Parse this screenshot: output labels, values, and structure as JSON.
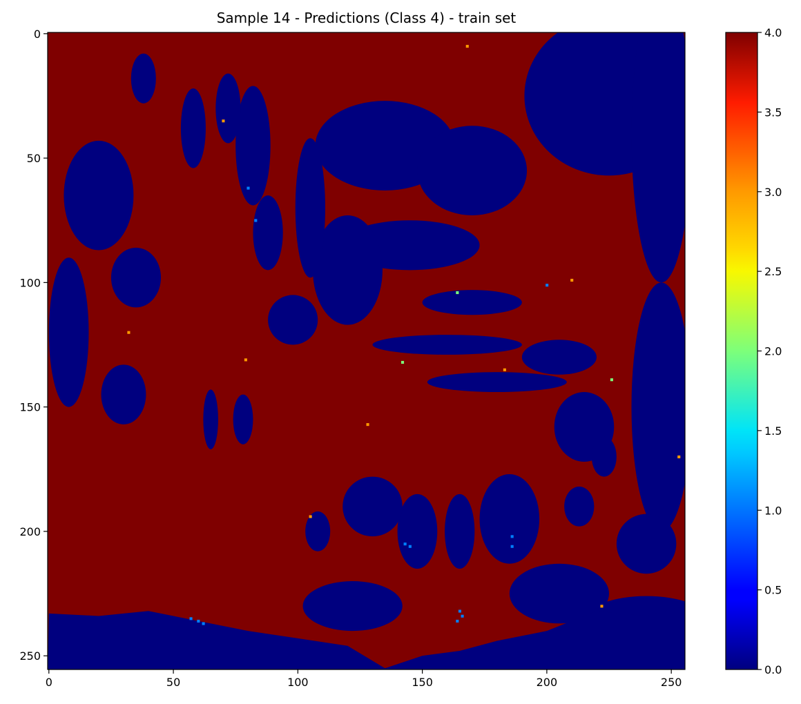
{
  "chart_data": {
    "type": "heatmap",
    "title": "Sample 14 - Predictions (Class 4) - train set",
    "xlabel": "",
    "ylabel": "",
    "image_size": [
      256,
      256
    ],
    "xlim": [
      -0.5,
      255.5
    ],
    "ylim": [
      255.5,
      -0.5
    ],
    "x_ticks": [
      0,
      50,
      100,
      150,
      200,
      250
    ],
    "y_ticks": [
      0,
      50,
      100,
      150,
      200,
      250
    ],
    "colormap": "jet",
    "colorbar": {
      "range": [
        0.0,
        4.0
      ],
      "ticks": [
        "0.0",
        "0.5",
        "1.0",
        "1.5",
        "2.0",
        "2.5",
        "3.0",
        "3.5",
        "4.0"
      ]
    },
    "class_values_present": [
      0,
      1,
      2,
      3,
      4
    ],
    "dominant_classes": [
      0,
      4
    ],
    "colors": {
      "class_0": "#00007f",
      "class_1": "#0080ff",
      "class_2": "#7dff7a",
      "class_3": "#ff9a00",
      "class_4": "#7f0000"
    },
    "regions_class_0": [
      {
        "cx": 225,
        "cy": 25,
        "rx": 34,
        "ry": 32
      },
      {
        "cx": 246,
        "cy": 40,
        "rx": 12,
        "ry": 60
      },
      {
        "cx": 135,
        "cy": 45,
        "rx": 28,
        "ry": 18
      },
      {
        "cx": 170,
        "cy": 55,
        "rx": 22,
        "ry": 18
      },
      {
        "cx": 145,
        "cy": 85,
        "rx": 28,
        "ry": 10
      },
      {
        "cx": 120,
        "cy": 95,
        "rx": 14,
        "ry": 22
      },
      {
        "cx": 105,
        "cy": 70,
        "rx": 6,
        "ry": 28
      },
      {
        "cx": 82,
        "cy": 45,
        "rx": 7,
        "ry": 24
      },
      {
        "cx": 72,
        "cy": 30,
        "rx": 5,
        "ry": 14
      },
      {
        "cx": 58,
        "cy": 38,
        "rx": 5,
        "ry": 16
      },
      {
        "cx": 38,
        "cy": 18,
        "rx": 5,
        "ry": 10
      },
      {
        "cx": 20,
        "cy": 65,
        "rx": 14,
        "ry": 22
      },
      {
        "cx": 8,
        "cy": 120,
        "rx": 8,
        "ry": 30
      },
      {
        "cx": 35,
        "cy": 98,
        "rx": 10,
        "ry": 12
      },
      {
        "cx": 30,
        "cy": 145,
        "rx": 9,
        "ry": 12
      },
      {
        "cx": 170,
        "cy": 108,
        "rx": 20,
        "ry": 5
      },
      {
        "cx": 160,
        "cy": 125,
        "rx": 30,
        "ry": 4
      },
      {
        "cx": 180,
        "cy": 140,
        "rx": 28,
        "ry": 4
      },
      {
        "cx": 205,
        "cy": 130,
        "rx": 15,
        "ry": 7
      },
      {
        "cx": 215,
        "cy": 158,
        "rx": 12,
        "ry": 14
      },
      {
        "cx": 246,
        "cy": 150,
        "rx": 12,
        "ry": 50
      },
      {
        "cx": 240,
        "cy": 235,
        "rx": 24,
        "ry": 9
      },
      {
        "cx": 185,
        "cy": 195,
        "rx": 12,
        "ry": 18
      },
      {
        "cx": 165,
        "cy": 200,
        "rx": 6,
        "ry": 15
      },
      {
        "cx": 148,
        "cy": 200,
        "rx": 8,
        "ry": 15
      },
      {
        "cx": 130,
        "cy": 190,
        "rx": 12,
        "ry": 12
      },
      {
        "cx": 205,
        "cy": 225,
        "rx": 20,
        "ry": 12
      },
      {
        "cx": 240,
        "cy": 205,
        "rx": 12,
        "ry": 12
      },
      {
        "cx": 122,
        "cy": 230,
        "rx": 20,
        "ry": 10
      },
      {
        "cx": 108,
        "cy": 200,
        "rx": 5,
        "ry": 8
      },
      {
        "cx": 98,
        "cy": 115,
        "rx": 10,
        "ry": 10
      },
      {
        "cx": 88,
        "cy": 80,
        "rx": 6,
        "ry": 15
      },
      {
        "cx": 78,
        "cy": 155,
        "rx": 4,
        "ry": 10
      },
      {
        "cx": 65,
        "cy": 155,
        "rx": 3,
        "ry": 12
      },
      {
        "cx": 223,
        "cy": 170,
        "rx": 5,
        "ry": 8
      },
      {
        "cx": 213,
        "cy": 190,
        "rx": 6,
        "ry": 8
      }
    ],
    "bottom_band_class_0": [
      {
        "x": 0,
        "y": 233
      },
      {
        "x": 20,
        "y": 234
      },
      {
        "x": 40,
        "y": 232
      },
      {
        "x": 60,
        "y": 236
      },
      {
        "x": 80,
        "y": 240
      },
      {
        "x": 100,
        "y": 243
      },
      {
        "x": 120,
        "y": 246
      },
      {
        "x": 135,
        "y": 255
      },
      {
        "x": 150,
        "y": 250
      },
      {
        "x": 165,
        "y": 248
      },
      {
        "x": 180,
        "y": 244
      },
      {
        "x": 200,
        "y": 240
      },
      {
        "x": 220,
        "y": 232
      },
      {
        "x": 240,
        "y": 234
      },
      {
        "x": 255,
        "y": 230
      }
    ],
    "specks": [
      {
        "x": 57,
        "y": 235,
        "v": 1
      },
      {
        "x": 60,
        "y": 236,
        "v": 1
      },
      {
        "x": 62,
        "y": 237,
        "v": 1
      },
      {
        "x": 165,
        "y": 232,
        "v": 1
      },
      {
        "x": 166,
        "y": 234,
        "v": 1
      },
      {
        "x": 164,
        "y": 236,
        "v": 1
      },
      {
        "x": 186,
        "y": 202,
        "v": 1
      },
      {
        "x": 186,
        "y": 206,
        "v": 1
      },
      {
        "x": 145,
        "y": 206,
        "v": 1
      },
      {
        "x": 143,
        "y": 205,
        "v": 1
      },
      {
        "x": 80,
        "y": 62,
        "v": 1
      },
      {
        "x": 83,
        "y": 75,
        "v": 1
      },
      {
        "x": 200,
        "y": 101,
        "v": 1
      },
      {
        "x": 164,
        "y": 104,
        "v": 2
      },
      {
        "x": 142,
        "y": 132,
        "v": 2
      },
      {
        "x": 226,
        "y": 139,
        "v": 2
      },
      {
        "x": 210,
        "y": 99,
        "v": 3
      },
      {
        "x": 183,
        "y": 135,
        "v": 3
      },
      {
        "x": 222,
        "y": 230,
        "v": 3
      },
      {
        "x": 105,
        "y": 194,
        "v": 3
      },
      {
        "x": 79,
        "y": 131,
        "v": 3
      },
      {
        "x": 32,
        "y": 120,
        "v": 3
      },
      {
        "x": 128,
        "y": 157,
        "v": 3
      },
      {
        "x": 70,
        "y": 35,
        "v": 3
      },
      {
        "x": 168,
        "y": 5,
        "v": 3
      },
      {
        "x": 253,
        "y": 170,
        "v": 3
      }
    ]
  }
}
